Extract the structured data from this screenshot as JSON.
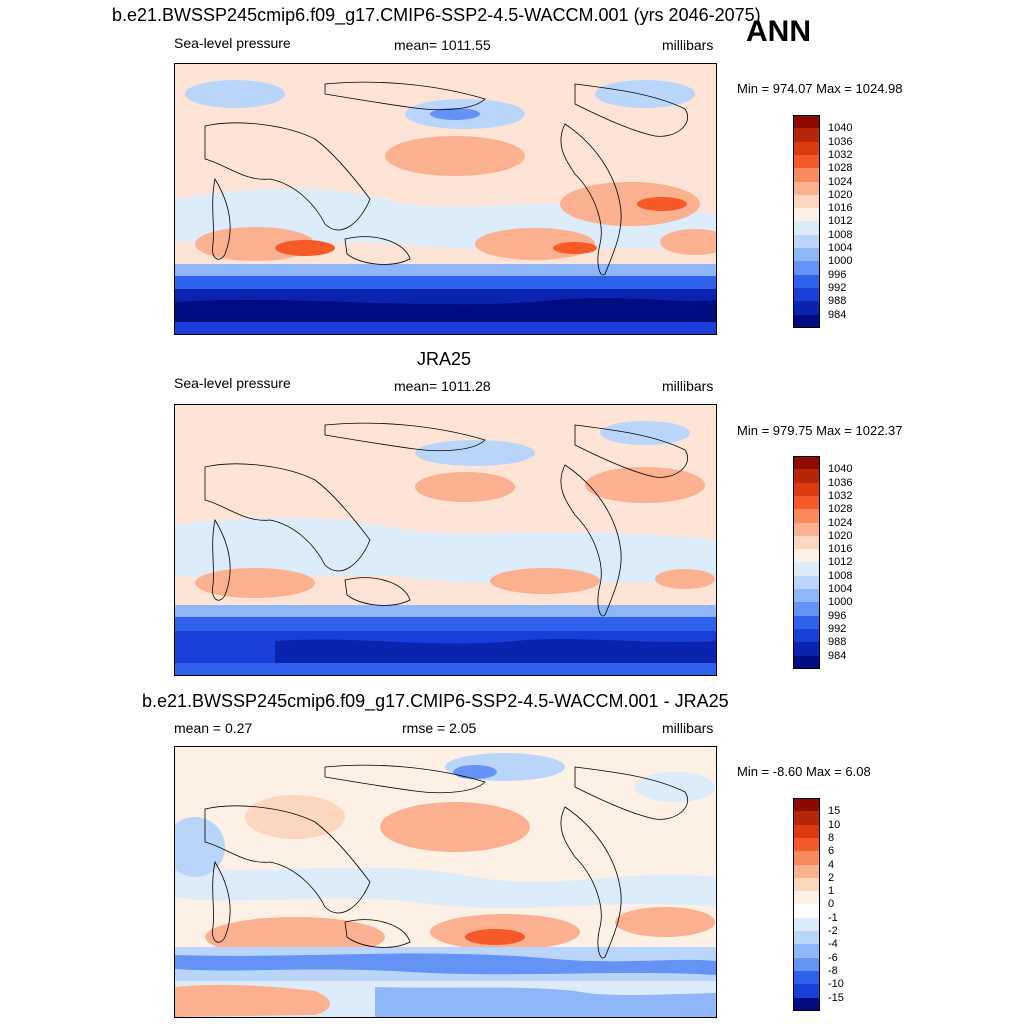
{
  "header": {
    "main_title": "b.e21.BWSSP245cmip6.f09_g17.CMIP6-SSP2-4.5-WACCM.001 (yrs 2046-2075)",
    "season": "ANN"
  },
  "panel1": {
    "left": "Sea-level pressure",
    "center": "mean= 1011.55",
    "right": "millibars",
    "minmax": "Min = 974.07 Max = 1024.98"
  },
  "panel2": {
    "title": "JRA25",
    "left": "Sea-level pressure",
    "center": "mean= 1011.28",
    "right": "millibars",
    "minmax": "Min = 979.75 Max = 1022.37"
  },
  "panel3": {
    "title": "b.e21.BWSSP245cmip6.f09_g17.CMIP6-SSP2-4.5-WACCM.001 - JRA25",
    "left": "mean =   0.27",
    "center": "rmse =   2.05",
    "right": "millibars",
    "minmax": "Min =  -8.60 Max =   6.08"
  },
  "colorbar_abs": {
    "labels": [
      "1040",
      "1036",
      "1032",
      "1028",
      "1024",
      "1020",
      "1016",
      "1012",
      "1008",
      "1004",
      "1000",
      "996",
      "992",
      "988",
      "984"
    ],
    "colors": [
      "#8c0a00",
      "#b8260a",
      "#dd3a10",
      "#f55a28",
      "#f98a5e",
      "#fbb090",
      "#fdd6c0",
      "#fdf0e4",
      "#dcecfb",
      "#b9d6fa",
      "#8fb6f8",
      "#6493f5",
      "#2e62ee",
      "#1a3fd8",
      "#0b24b0",
      "#000c80"
    ]
  },
  "colorbar_diff": {
    "labels": [
      "15",
      "10",
      "8",
      "6",
      "4",
      "2",
      "1",
      "0",
      "-1",
      "-2",
      "-4",
      "-6",
      "-8",
      "-10",
      "-15"
    ],
    "colors": [
      "#8c0a00",
      "#b8260a",
      "#dd3a10",
      "#f55a28",
      "#f98a5e",
      "#fbb090",
      "#fdd6c0",
      "#fdf0e4",
      "#ffffff",
      "#dcecfb",
      "#b9d6fa",
      "#8fb6f8",
      "#6493f5",
      "#2e62ee",
      "#1a3fd8",
      "#000c80"
    ]
  },
  "chart_data": [
    {
      "type": "heatmap",
      "title": "b.e21.BWSSP245cmip6.f09_g17.CMIP6-SSP2-4.5-WACCM.001 (yrs 2046-2075)",
      "variable": "Sea-level pressure",
      "units": "millibars",
      "mean": 1011.55,
      "min": 974.07,
      "max": 1024.98,
      "contour_levels": [
        984,
        988,
        992,
        996,
        1000,
        1004,
        1008,
        1012,
        1016,
        1020,
        1024,
        1028,
        1032,
        1036,
        1040
      ]
    },
    {
      "type": "heatmap",
      "title": "JRA25",
      "variable": "Sea-level pressure",
      "units": "millibars",
      "mean": 1011.28,
      "min": 979.75,
      "max": 1022.37,
      "contour_levels": [
        984,
        988,
        992,
        996,
        1000,
        1004,
        1008,
        1012,
        1016,
        1020,
        1024,
        1028,
        1032,
        1036,
        1040
      ]
    },
    {
      "type": "heatmap",
      "title": "b.e21.BWSSP245cmip6.f09_g17.CMIP6-SSP2-4.5-WACCM.001 - JRA25",
      "units": "millibars",
      "mean": 0.27,
      "rmse": 2.05,
      "min": -8.6,
      "max": 6.08,
      "contour_levels": [
        -15,
        -10,
        -8,
        -6,
        -4,
        -2,
        -1,
        0,
        1,
        2,
        4,
        6,
        8,
        10,
        15
      ]
    }
  ]
}
